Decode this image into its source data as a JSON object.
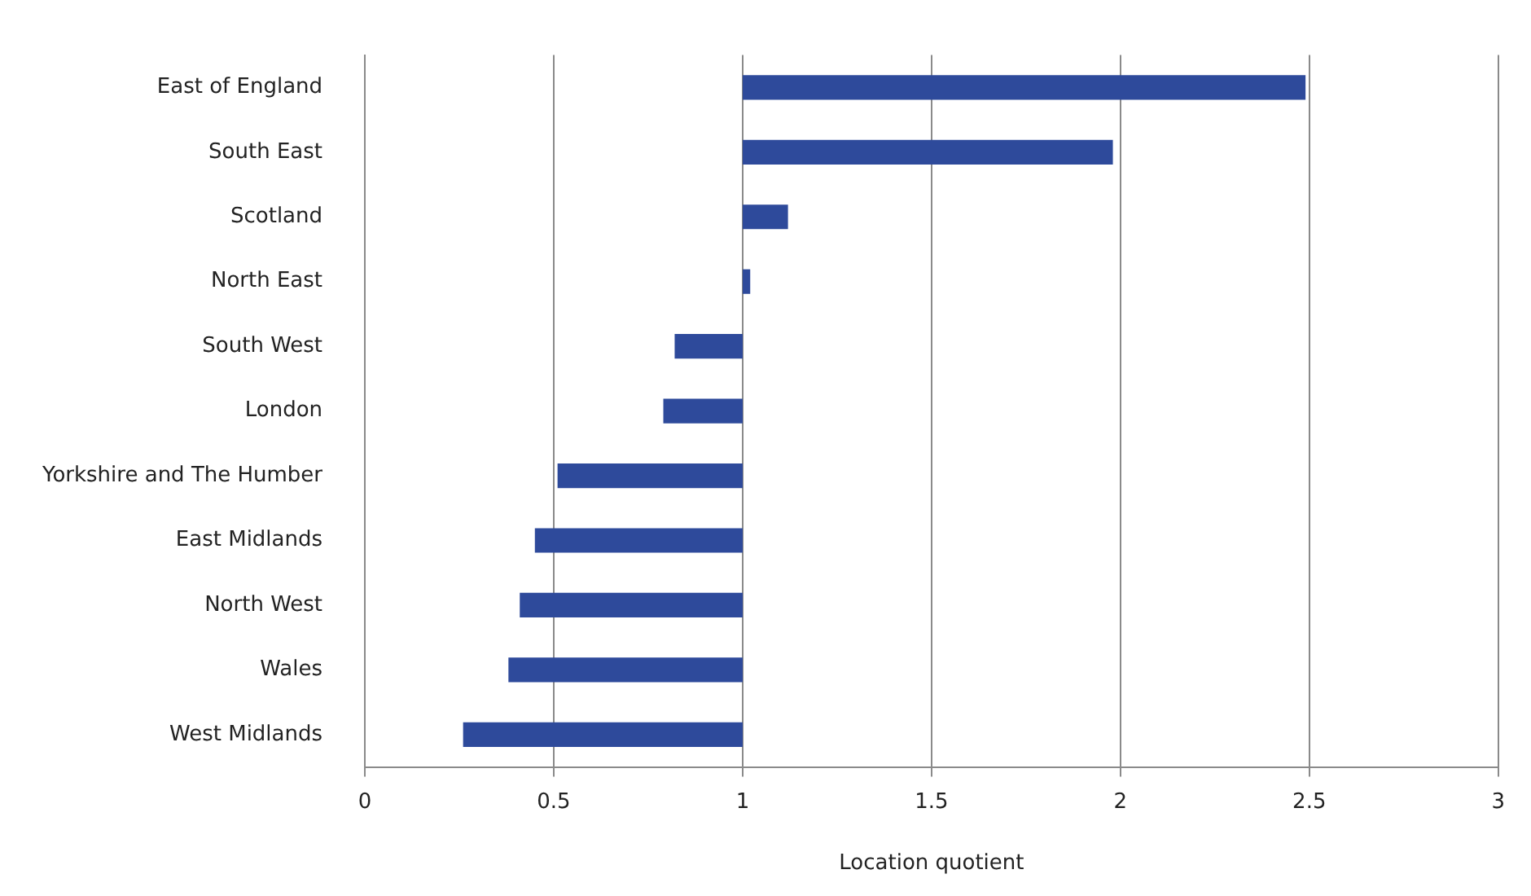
{
  "chart_data": {
    "type": "bar",
    "orientation": "horizontal",
    "xlabel": "Location quotient",
    "categories": [
      "East of England",
      "South East",
      "Scotland",
      "North East",
      "South West",
      "London",
      "Yorkshire and The Humber",
      "East Midlands",
      "North West",
      "Wales",
      "West Midlands"
    ],
    "base": [
      1,
      1,
      1,
      1,
      1,
      1,
      1,
      1,
      1,
      1,
      1
    ],
    "values": [
      1.49,
      0.98,
      0.12,
      0.02,
      -0.18,
      -0.21,
      -0.49,
      -0.55,
      -0.59,
      -0.62,
      -0.74
    ],
    "color": "#2e4a9b",
    "xlim": [
      0,
      3
    ],
    "xticks": [
      0,
      0.5,
      1,
      1.5,
      2,
      2.5,
      3
    ],
    "grid": "x",
    "legend": false
  }
}
